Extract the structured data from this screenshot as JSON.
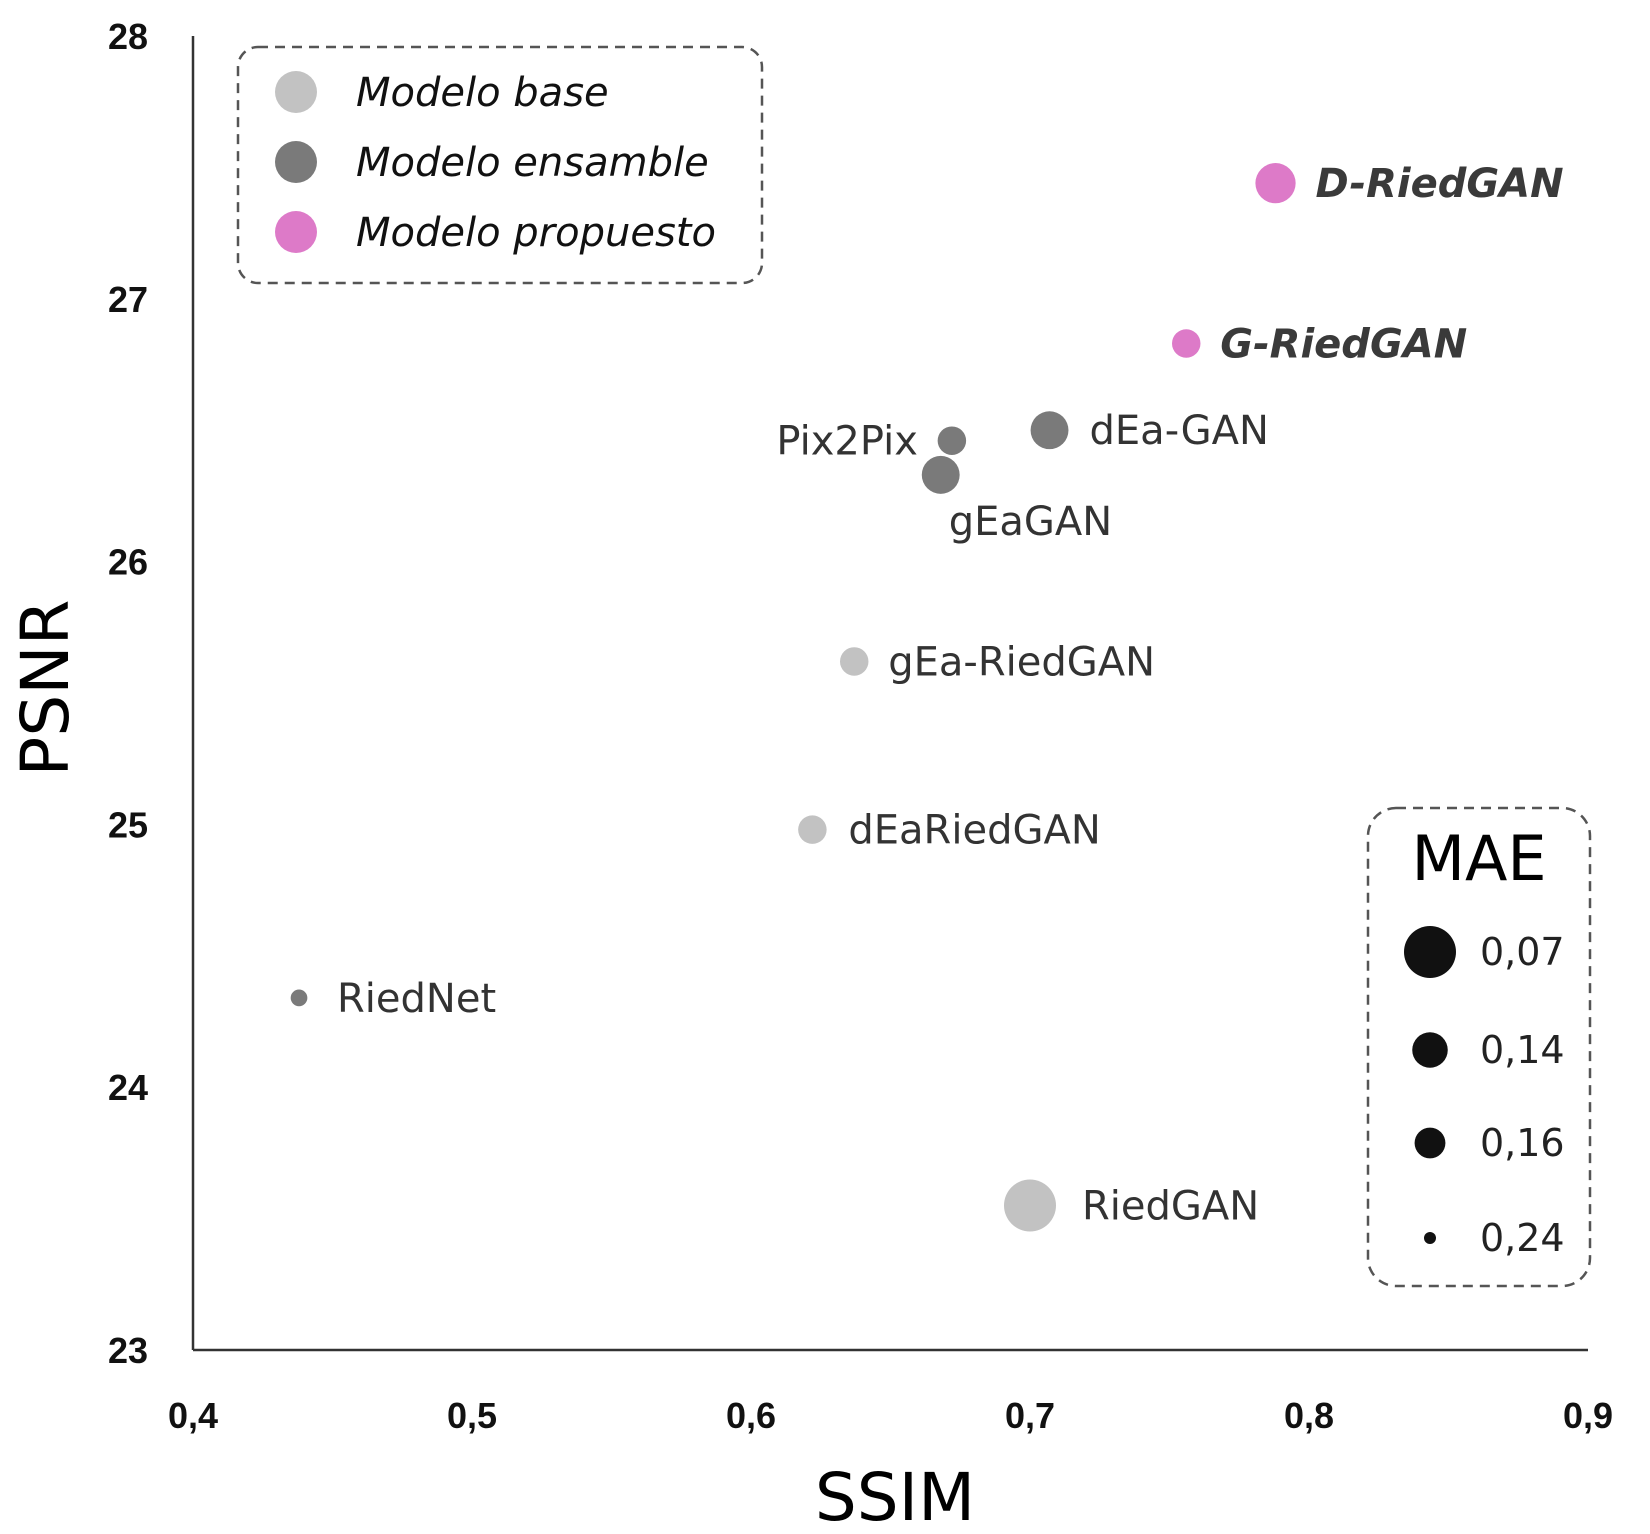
{
  "chart_data": {
    "type": "scatter",
    "xlabel": "SSIM",
    "ylabel": "PSNR",
    "xlim": [
      0.4,
      0.9
    ],
    "ylim": [
      23,
      28
    ],
    "x_ticks": [
      "0,4",
      "0,5",
      "0,6",
      "0,7",
      "0,8",
      "0,9"
    ],
    "y_ticks": [
      "23",
      "24",
      "25",
      "26",
      "27",
      "28"
    ],
    "colors": {
      "base": "#c2c2c2",
      "ensamble": "#7a7a7a",
      "propuesto": "#dd7ac8",
      "axis": "#333333",
      "mae_marker": "#111111"
    },
    "legend": [
      {
        "label": "Modelo base",
        "group": "base"
      },
      {
        "label": "Modelo ensamble",
        "group": "ensamble"
      },
      {
        "label": "Modelo propuesto",
        "group": "propuesto"
      }
    ],
    "points": [
      {
        "label": "D-RiedGAN",
        "ssim": 0.788,
        "psnr": 27.44,
        "group": "propuesto",
        "mae": 0.12,
        "emphasis": true
      },
      {
        "label": "G-RiedGAN",
        "ssim": 0.756,
        "psnr": 26.83,
        "group": "propuesto",
        "mae": 0.17,
        "emphasis": true
      },
      {
        "label": "dEa-GAN",
        "ssim": 0.707,
        "psnr": 26.5,
        "group": "ensamble",
        "mae": 0.13
      },
      {
        "label": "Pix2Pix",
        "ssim": 0.672,
        "psnr": 26.46,
        "group": "ensamble",
        "mae": 0.17
      },
      {
        "label": "gEaGAN",
        "ssim": 0.668,
        "psnr": 26.33,
        "group": "ensamble",
        "mae": 0.13
      },
      {
        "label": "gEa-RiedGAN",
        "ssim": 0.637,
        "psnr": 25.62,
        "group": "base",
        "mae": 0.17
      },
      {
        "label": "dEaRiedGAN",
        "ssim": 0.622,
        "psnr": 24.98,
        "group": "base",
        "mae": 0.17
      },
      {
        "label": "RiedNet",
        "ssim": 0.438,
        "psnr": 24.34,
        "group": "ensamble",
        "mae": 0.22
      },
      {
        "label": "RiedGAN",
        "ssim": 0.7,
        "psnr": 23.55,
        "group": "base",
        "mae": 0.07
      }
    ],
    "size_legend": {
      "title": "MAE",
      "entries": [
        {
          "label": "0,07",
          "mae": 0.07
        },
        {
          "label": "0,14",
          "mae": 0.14
        },
        {
          "label": "0,16",
          "mae": 0.16
        },
        {
          "label": "0,24",
          "mae": 0.24
        }
      ]
    }
  }
}
